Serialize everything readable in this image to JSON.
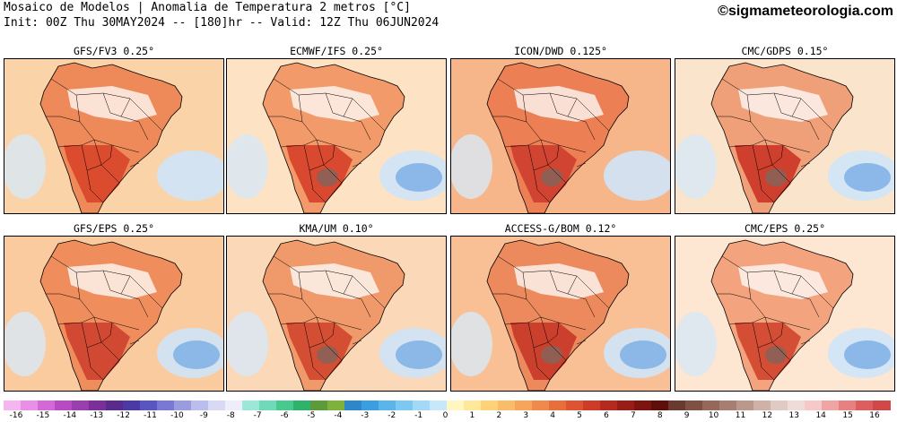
{
  "header": {
    "title": "Mosaico de Modelos | Anomalia de Temperatura 2 metros [°C]",
    "init_line": "Init: 00Z Thu 30MAY2024 -- [180]hr -- Valid: 12Z Thu 06JUN2024",
    "brand": "©sigmameteorologia.com"
  },
  "panels": [
    {
      "title": "GFS/FV3 0.25°"
    },
    {
      "title": "ECMWF/IFS 0.25°"
    },
    {
      "title": "ICON/DWD 0.125°"
    },
    {
      "title": "CMC/GDPS 0.15°"
    },
    {
      "title": "GFS/EPS 0.25°"
    },
    {
      "title": "KMA/UM 0.10°"
    },
    {
      "title": "ACCESS-G/BOM 0.12°"
    },
    {
      "title": "CMC/EPS 0.25°"
    }
  ],
  "colorbar": {
    "labels": [
      "-16",
      "-15",
      "-14",
      "-13",
      "-12",
      "-11",
      "-10",
      "-9",
      "-8",
      "-7",
      "-6",
      "-5",
      "-4",
      "-3",
      "-2",
      "-1",
      "0",
      "1",
      "2",
      "3",
      "4",
      "5",
      "6",
      "7",
      "8",
      "9",
      "10",
      "11",
      "12",
      "13",
      "14",
      "15",
      "16"
    ],
    "colors": [
      "#f5b6ef",
      "#e98fe6",
      "#d468d6",
      "#b84bc4",
      "#9a3fae",
      "#7a2f99",
      "#5a2a8c",
      "#4b3aa6",
      "#5a55c2",
      "#7a78d4",
      "#9b9ce0",
      "#bbbdec",
      "#d8d9f5",
      "#eeeefb",
      "#9be8d8",
      "#6fd9b8",
      "#48c98e",
      "#2fb26a",
      "#5c9a3c",
      "#7fb23a",
      "#2f86c9",
      "#3a9ee0",
      "#5ab5ea",
      "#7cc8f0",
      "#a3d9f6",
      "#c6e8fa",
      "#fff6c2",
      "#ffe89a",
      "#ffd27a",
      "#fbbc6a",
      "#f8a55c",
      "#f08a4c",
      "#e86e3c",
      "#de5432",
      "#cc3c27",
      "#b52a1f",
      "#9a1c16",
      "#7d1410",
      "#5e0e0b",
      "#6a3a30",
      "#7f5145",
      "#95685b",
      "#a87e72",
      "#bc978c",
      "#cfb1a8",
      "#e0cbc4",
      "#efdcd8",
      "#f7c8c8",
      "#f0a4a4",
      "#e78080",
      "#dd5e5e",
      "#d04848"
    ]
  }
}
